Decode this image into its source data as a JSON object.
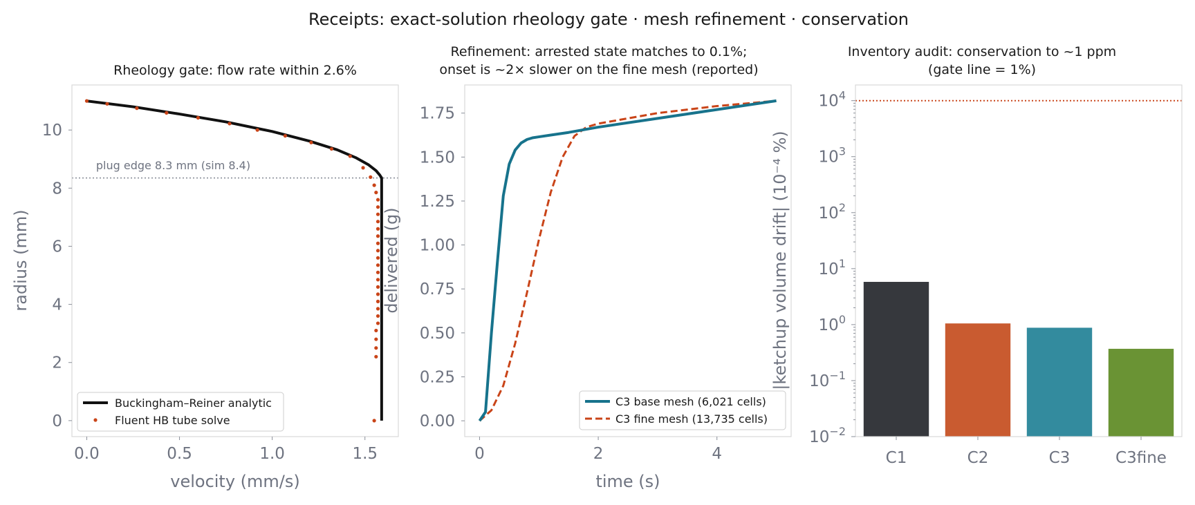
{
  "suptitle": "Receipts: exact-solution rheology gate · mesh refinement · conservation",
  "colors": {
    "analytic": "#111111",
    "fluent": "#c94418",
    "base": "#17738c",
    "fine": "#c94418",
    "gate": "#c94418",
    "muted": "#6e7380"
  },
  "chart_data": [
    {
      "type": "line",
      "title": "Rheology gate: flow rate within 2.6%",
      "xlabel": "velocity (mm/s)",
      "ylabel": "radius (mm)",
      "xlim": [
        -0.08,
        1.68
      ],
      "ylim": [
        -0.55,
        11.55
      ],
      "xticks": [
        0.0,
        0.5,
        1.0,
        1.5
      ],
      "xtick_labels": [
        "0.0",
        "0.5",
        "1.0",
        "1.5"
      ],
      "yticks": [
        0,
        2,
        4,
        6,
        8,
        10
      ],
      "ytick_labels": [
        "0",
        "2",
        "4",
        "6",
        "8",
        "10"
      ],
      "grid": false,
      "legend_position": "lower-left",
      "series": [
        {
          "name": "Buckingham–Reiner analytic",
          "style": "solid",
          "x": [
            0.0,
            0.25,
            0.5,
            0.75,
            1.0,
            1.2,
            1.35,
            1.45,
            1.52,
            1.56,
            1.58,
            1.59,
            1.59,
            1.59
          ],
          "y": [
            11.0,
            10.8,
            10.55,
            10.28,
            9.95,
            9.62,
            9.32,
            9.05,
            8.8,
            8.6,
            8.45,
            8.35,
            4.0,
            0.0
          ]
        },
        {
          "name": "Fluent HB tube solve",
          "style": "dots",
          "x": [
            0.0,
            0.11,
            0.27,
            0.43,
            0.6,
            0.77,
            0.92,
            1.07,
            1.21,
            1.32,
            1.42,
            1.49,
            1.53,
            1.55,
            1.56,
            1.57,
            1.57,
            1.57,
            1.57,
            1.57,
            1.57,
            1.57,
            1.57,
            1.57,
            1.57,
            1.57,
            1.57,
            1.57,
            1.57,
            1.57,
            1.57,
            1.57,
            1.57,
            1.56,
            1.56,
            1.56,
            1.56,
            1.55
          ],
          "y": [
            11.0,
            10.9,
            10.75,
            10.59,
            10.42,
            10.22,
            10.0,
            9.8,
            9.57,
            9.35,
            9.1,
            8.7,
            8.38,
            8.1,
            7.85,
            7.6,
            7.35,
            7.1,
            6.85,
            6.6,
            6.35,
            6.1,
            5.85,
            5.6,
            5.35,
            5.1,
            4.85,
            4.6,
            4.35,
            4.1,
            3.85,
            3.6,
            3.35,
            3.1,
            2.8,
            2.5,
            2.2,
            0.0
          ]
        }
      ],
      "annotations": [
        {
          "text": "plug edge 8.3 mm (sim 8.4)",
          "x": 0.05,
          "y": 8.65,
          "line_y": 8.35
        }
      ]
    },
    {
      "type": "line",
      "title_lines": [
        "Refinement: arrested state matches to 0.1%;",
        "onset is ~2× slower on the fine mesh (reported)"
      ],
      "xlabel": "time (s)",
      "ylabel": "delivered (g)",
      "xlim": [
        -0.25,
        5.25
      ],
      "ylim": [
        -0.09,
        1.91
      ],
      "xticks": [
        0,
        2,
        4
      ],
      "xtick_labels": [
        "0",
        "2",
        "4"
      ],
      "yticks": [
        0.0,
        0.25,
        0.5,
        0.75,
        1.0,
        1.25,
        1.5,
        1.75
      ],
      "ytick_labels": [
        "0.00",
        "0.25",
        "0.50",
        "0.75",
        "1.00",
        "1.25",
        "1.50",
        "1.75"
      ],
      "grid": false,
      "legend_position": "lower-right",
      "series": [
        {
          "name": "C3 base mesh (6,021 cells)",
          "style": "solid",
          "x": [
            0.0,
            0.1,
            0.2,
            0.3,
            0.4,
            0.5,
            0.6,
            0.7,
            0.8,
            0.9,
            1.0,
            1.2,
            1.5,
            2.0,
            3.0,
            4.0,
            5.0
          ],
          "y": [
            0.0,
            0.05,
            0.5,
            0.9,
            1.28,
            1.46,
            1.54,
            1.58,
            1.6,
            1.61,
            1.615,
            1.625,
            1.64,
            1.67,
            1.72,
            1.77,
            1.82
          ]
        },
        {
          "name": "C3 fine mesh (13,735 cells)",
          "style": "dashed",
          "x": [
            0.0,
            0.2,
            0.4,
            0.6,
            0.8,
            1.0,
            1.2,
            1.4,
            1.6,
            1.8,
            2.0,
            2.5,
            3.0,
            3.5,
            4.0,
            4.5,
            5.0
          ],
          "y": [
            0.0,
            0.06,
            0.2,
            0.44,
            0.73,
            1.03,
            1.3,
            1.5,
            1.62,
            1.67,
            1.69,
            1.72,
            1.75,
            1.77,
            1.79,
            1.805,
            1.82
          ]
        }
      ]
    },
    {
      "type": "bar",
      "title_lines": [
        "Inventory audit: conservation to ~1 ppm",
        "(gate line = 1%)"
      ],
      "xlabel": "",
      "ylabel": "|ketchup volume drift| (10⁻⁴ %)",
      "yscale": "log",
      "ylim_exp": [
        -2,
        4.28
      ],
      "ytick_exps": [
        -2,
        -1,
        0,
        1,
        2,
        3,
        4
      ],
      "ytick_mantissa": "10",
      "grid": false,
      "categories": [
        "C1",
        "C2",
        "C3",
        "C3fine"
      ],
      "values": [
        5.8,
        1.05,
        0.88,
        0.37
      ],
      "bar_colors": [
        "#36383d",
        "#c95b30",
        "#338b9e",
        "#6a9334"
      ],
      "gate_line": 10000
    }
  ]
}
